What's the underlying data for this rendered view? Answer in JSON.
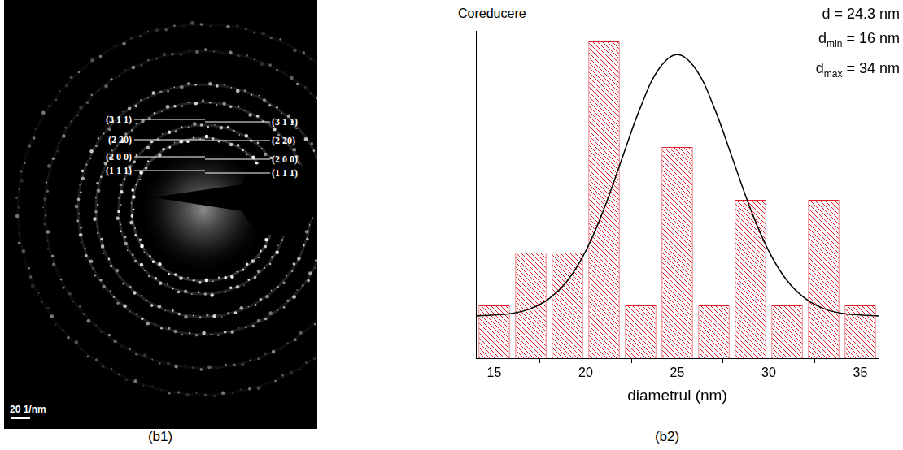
{
  "image_panel": {
    "ring_labels": {
      "left": [
        "(3 1 1)",
        "(2 20)",
        "(2 0 0)",
        "(1 1 1)"
      ],
      "right": [
        "(3 1 1)",
        "(2 20)",
        "(2 0 0)",
        "(1 1 1)"
      ]
    },
    "scale_bar": "20 1/nm",
    "caption": "(b1)"
  },
  "chart_data": {
    "type": "histogram",
    "title": "Coreducere",
    "caption": "(b2)",
    "x_label": "diametrul (nm)",
    "bins": [
      14,
      16,
      18,
      20,
      22,
      24,
      26,
      28,
      30,
      32,
      34,
      36
    ],
    "values": [
      1,
      2,
      2,
      6,
      1,
      4,
      1,
      3,
      1,
      3,
      1
    ],
    "color": "#e41e26",
    "xlim": [
      14,
      36
    ],
    "xticks": [
      15,
      20,
      25,
      30,
      35
    ],
    "ylim": [
      0,
      6.2
    ],
    "tick_labels": "x",
    "grid": false,
    "fit": {
      "type": "line",
      "color": "#000000",
      "x": [
        14,
        15,
        16,
        17,
        18,
        19,
        20,
        21,
        22,
        23,
        24,
        25,
        26,
        27,
        28,
        29,
        30,
        31,
        32,
        33,
        34,
        35,
        36
      ],
      "values": [
        0.8,
        0.82,
        0.85,
        0.94,
        1.13,
        1.47,
        2.03,
        2.83,
        3.8,
        4.76,
        5.48,
        5.75,
        5.48,
        4.76,
        3.8,
        2.83,
        2.03,
        1.47,
        1.13,
        0.94,
        0.85,
        0.82,
        0.8
      ]
    },
    "annotations": [
      {
        "text": "d = 24.3 nm"
      },
      {
        "text": "d",
        "subscript": "min",
        "after": " = 16 nm"
      },
      {
        "text": "d",
        "subscript": "max",
        "after": " = 34 nm"
      }
    ]
  }
}
